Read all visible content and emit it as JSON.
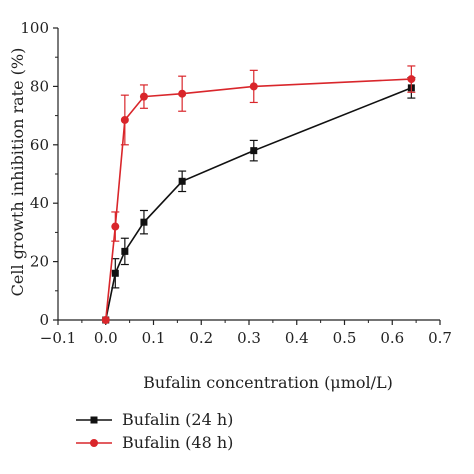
{
  "chart_data": {
    "type": "line",
    "title": "",
    "xlabel": "Bufalin concentration (μmol/L)",
    "ylabel": "Cell growth inhibition rate (%)",
    "xlim": [
      -0.1,
      0.7
    ],
    "ylim": [
      0,
      100
    ],
    "x_ticks": [
      "−0.1",
      "0.0",
      "0.1",
      "0.2",
      "0.3",
      "0.4",
      "0.5",
      "0.6",
      "0.7"
    ],
    "y_ticks": [
      "0",
      "20",
      "40",
      "60",
      "80",
      "100"
    ],
    "x_tick_values": [
      -0.1,
      0.0,
      0.1,
      0.2,
      0.3,
      0.4,
      0.5,
      0.6,
      0.7
    ],
    "y_tick_values": [
      0,
      20,
      40,
      60,
      80,
      100
    ],
    "legend_position": "bottom",
    "series": [
      {
        "name": "Bufalin (24 h)",
        "color": "#111111",
        "marker": "square",
        "x": [
          0,
          0.02,
          0.04,
          0.08,
          0.16,
          0.31,
          0.64
        ],
        "y": [
          0,
          16,
          23.5,
          33.5,
          47.5,
          58,
          79.5
        ],
        "err": [
          0,
          5,
          4.5,
          4,
          3.5,
          3.5,
          3.5
        ]
      },
      {
        "name": "Bufalin (48 h)",
        "color": "#d9262b",
        "marker": "circle",
        "x": [
          0,
          0.02,
          0.04,
          0.08,
          0.16,
          0.31,
          0.64
        ],
        "y": [
          0,
          32,
          68.5,
          76.5,
          77.5,
          80,
          82.5
        ],
        "err": [
          0,
          5,
          8.5,
          4,
          6,
          5.5,
          4.5
        ]
      }
    ]
  }
}
